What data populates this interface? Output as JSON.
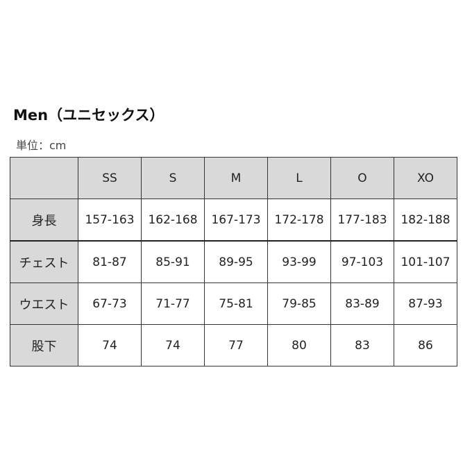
{
  "title": "Men（ユニセックス）",
  "unit": "単位：cm",
  "table": {
    "corner": "",
    "headers": [
      "SS",
      "S",
      "M",
      "L",
      "O",
      "XO"
    ],
    "rows": [
      {
        "label": "身長",
        "values": [
          "157-163",
          "162-168",
          "167-173",
          "172-178",
          "177-183",
          "182-188"
        ]
      },
      {
        "label": "チェスト",
        "values": [
          "81-87",
          "85-91",
          "89-95",
          "93-99",
          "97-103",
          "101-107"
        ]
      },
      {
        "label": "ウエスト",
        "values": [
          "67-73",
          "71-77",
          "75-81",
          "79-85",
          "83-89",
          "87-93"
        ]
      },
      {
        "label": "股下",
        "values": [
          "74",
          "74",
          "77",
          "80",
          "83",
          "86"
        ]
      }
    ]
  },
  "colors": {
    "header_bg": "#d9d9d9",
    "border": "#333333"
  }
}
